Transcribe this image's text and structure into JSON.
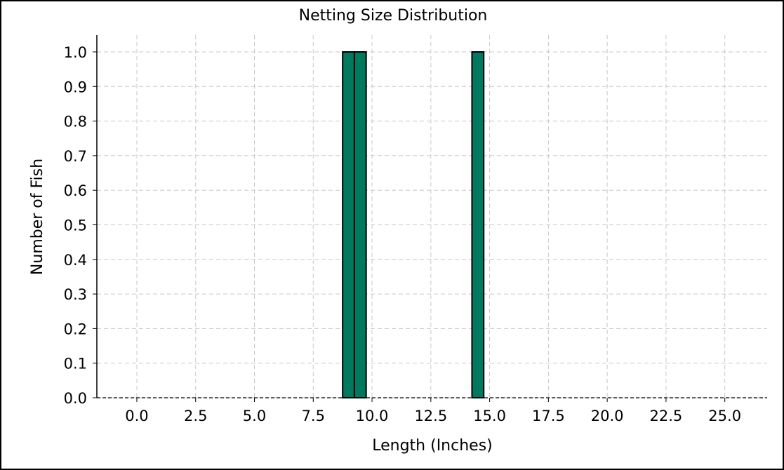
{
  "chart_data": {
    "type": "bar",
    "title": "Netting Size Distribution",
    "xlabel": "Length (Inches)",
    "ylabel": "Number of Fish",
    "xlim": [
      -1.7,
      26.8
    ],
    "ylim": [
      0.0,
      1.0
    ],
    "bin_width": 0.5,
    "xticks": [
      "0.0",
      "2.5",
      "5.0",
      "7.5",
      "10.0",
      "12.5",
      "15.0",
      "17.5",
      "20.0",
      "22.5",
      "25.0"
    ],
    "xtick_values": [
      0.0,
      2.5,
      5.0,
      7.5,
      10.0,
      12.5,
      15.0,
      17.5,
      20.0,
      22.5,
      25.0
    ],
    "yticks": [
      "0.0",
      "0.1",
      "0.2",
      "0.3",
      "0.4",
      "0.5",
      "0.6",
      "0.7",
      "0.8",
      "0.9",
      "1.0"
    ],
    "ytick_values": [
      0.0,
      0.1,
      0.2,
      0.3,
      0.4,
      0.5,
      0.6,
      0.7,
      0.8,
      0.9,
      1.0
    ],
    "bars": [
      {
        "x_start": 8.75,
        "x_end": 9.25,
        "value": 1
      },
      {
        "x_start": 9.25,
        "x_end": 9.75,
        "value": 1
      },
      {
        "x_start": 14.25,
        "x_end": 14.75,
        "value": 1
      }
    ],
    "grid": true,
    "colors": {
      "bar_fill": "#007a5e",
      "bar_edge": "#000000",
      "grid": "#c8c8c8"
    }
  }
}
